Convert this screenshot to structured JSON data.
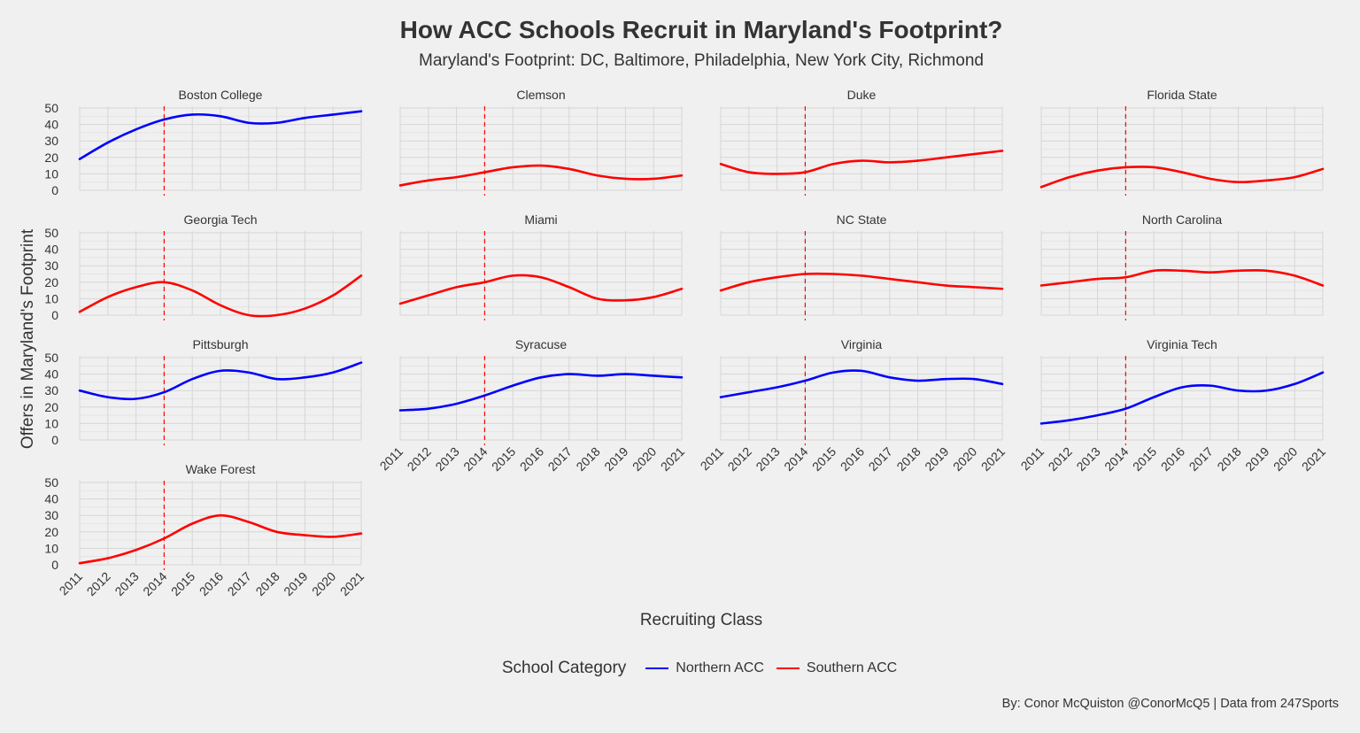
{
  "title": "How ACC Schools Recruit in Maryland's Footprint?",
  "subtitle": "Maryland's Footprint: DC, Baltimore, Philadelphia, New York City, Richmond",
  "caption": "By: Conor McQuiston @ConorMcQ5 | Data from 247Sports",
  "colors": {
    "Northern ACC": "#0000ff",
    "Southern ACC": "#ff0000",
    "reference_line": "#ff0000"
  },
  "chart_data": {
    "type": "line",
    "facet": "small-multiples",
    "xlabel": "Recruiting Class",
    "ylabel": "Offers in Maryland's Footprint",
    "x_ticks": [
      "2011",
      "2012",
      "2013",
      "2014",
      "2015",
      "2016",
      "2017",
      "2018",
      "2019",
      "2020",
      "2021"
    ],
    "y_ticks": [
      0,
      10,
      20,
      30,
      40,
      50
    ],
    "xlim": [
      2011,
      2021
    ],
    "ylim": [
      0,
      50
    ],
    "reference_line_x": 2014,
    "grid": true,
    "legend": {
      "title": "School Category",
      "placement": "bottom",
      "entries": [
        "Northern ACC",
        "Southern ACC"
      ]
    },
    "x": [
      2011,
      2012,
      2013,
      2014,
      2015,
      2016,
      2017,
      2018,
      2019,
      2020,
      2021
    ],
    "panels": [
      {
        "name": "Boston College",
        "category": "Northern ACC",
        "values": [
          19,
          29,
          37,
          43,
          46,
          45,
          41,
          41,
          44,
          46,
          48
        ]
      },
      {
        "name": "Clemson",
        "category": "Southern ACC",
        "values": [
          3,
          6,
          8,
          11,
          14,
          15,
          13,
          9,
          7,
          7,
          9
        ]
      },
      {
        "name": "Duke",
        "category": "Southern ACC",
        "values": [
          16,
          11,
          10,
          11,
          16,
          18,
          17,
          18,
          20,
          22,
          24
        ]
      },
      {
        "name": "Florida State",
        "category": "Southern ACC",
        "values": [
          2,
          8,
          12,
          14,
          14,
          11,
          7,
          5,
          6,
          8,
          13
        ]
      },
      {
        "name": "Georgia Tech",
        "category": "Southern ACC",
        "values": [
          2,
          11,
          17,
          20,
          15,
          6,
          0,
          0,
          4,
          12,
          24
        ]
      },
      {
        "name": "Miami",
        "category": "Southern ACC",
        "values": [
          7,
          12,
          17,
          20,
          24,
          23,
          17,
          10,
          9,
          11,
          16
        ]
      },
      {
        "name": "NC State",
        "category": "Southern ACC",
        "values": [
          15,
          20,
          23,
          25,
          25,
          24,
          22,
          20,
          18,
          17,
          16
        ]
      },
      {
        "name": "North Carolina",
        "category": "Southern ACC",
        "values": [
          18,
          20,
          22,
          23,
          27,
          27,
          26,
          27,
          27,
          24,
          18
        ]
      },
      {
        "name": "Pittsburgh",
        "category": "Northern ACC",
        "values": [
          30,
          26,
          25,
          29,
          37,
          42,
          41,
          37,
          38,
          41,
          47
        ]
      },
      {
        "name": "Syracuse",
        "category": "Northern ACC",
        "values": [
          18,
          19,
          22,
          27,
          33,
          38,
          40,
          39,
          40,
          39,
          38
        ]
      },
      {
        "name": "Virginia",
        "category": "Northern ACC",
        "values": [
          26,
          29,
          32,
          36,
          41,
          42,
          38,
          36,
          37,
          37,
          34
        ]
      },
      {
        "name": "Virginia Tech",
        "category": "Northern ACC",
        "values": [
          10,
          12,
          15,
          19,
          26,
          32,
          33,
          30,
          30,
          34,
          41
        ]
      },
      {
        "name": "Wake Forest",
        "category": "Southern ACC",
        "values": [
          1,
          4,
          9,
          16,
          25,
          30,
          26,
          20,
          18,
          17,
          19
        ]
      }
    ]
  }
}
